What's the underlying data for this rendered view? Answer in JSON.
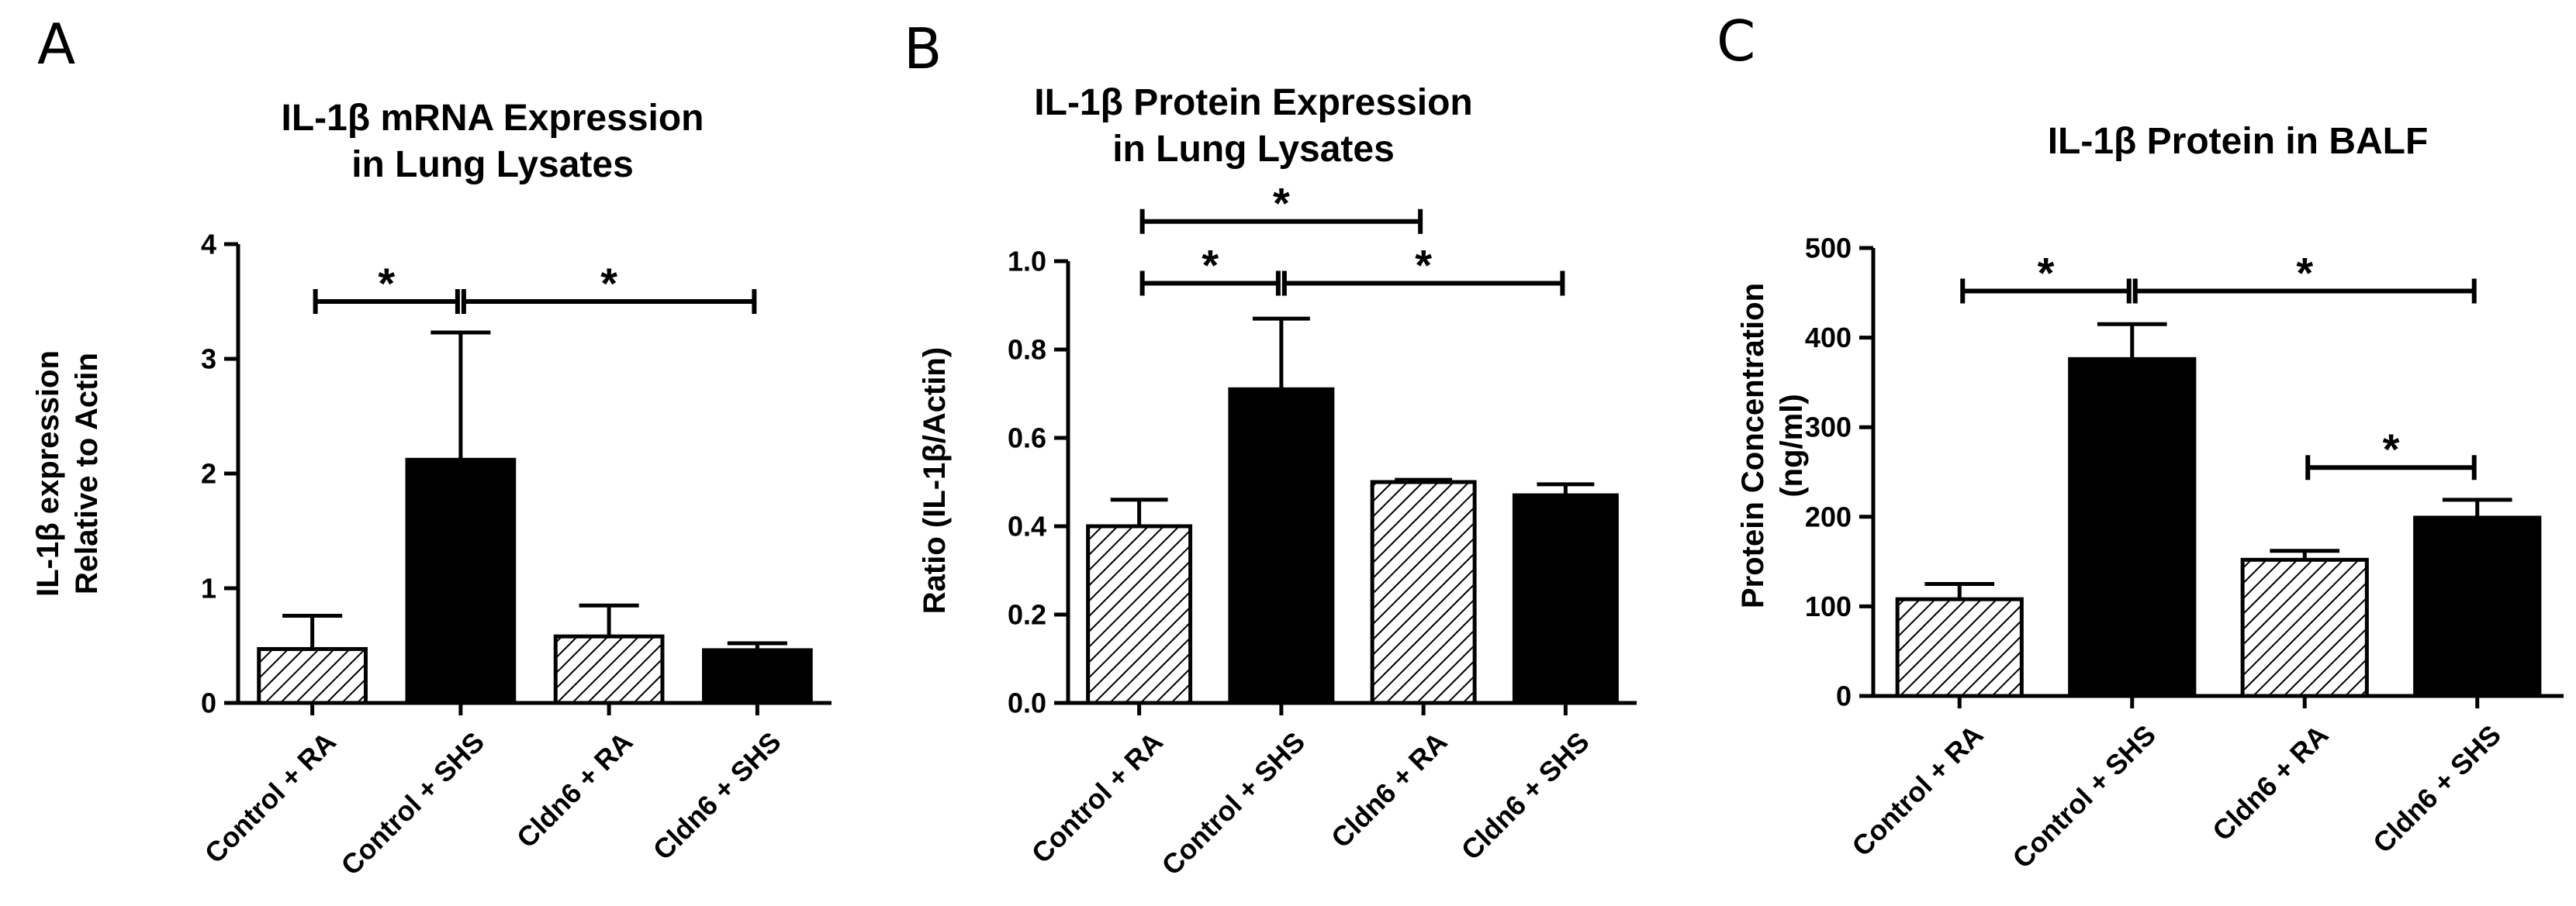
{
  "colors": {
    "black": "#000000",
    "hatch_fill": "#ffffff",
    "hatch_line": "#000000"
  },
  "chart_data": [
    {
      "panel": "A",
      "type": "bar",
      "title": [
        "IL-1β mRNA Expression",
        "in Lung Lysates"
      ],
      "ylabel": [
        "IL-1β expression",
        "Relative to Actin"
      ],
      "categories": [
        "Control + RA",
        "Control + SHS",
        "Cldn6 + RA",
        "Cldn6 + SHS"
      ],
      "values": [
        0.47,
        2.12,
        0.58,
        0.46
      ],
      "errors": [
        0.29,
        1.11,
        0.27,
        0.06
      ],
      "fills": [
        "hatch",
        "solid",
        "hatch",
        "solid"
      ],
      "ylim": [
        0,
        4
      ],
      "yticks": [
        "0",
        "1",
        "2",
        "3",
        "4"
      ],
      "significance": [
        {
          "from": 0,
          "to": 1,
          "y": 3.5,
          "label": "*"
        },
        {
          "from": 1,
          "to": 3,
          "y": 3.5,
          "label": "*"
        }
      ]
    },
    {
      "panel": "B",
      "type": "bar",
      "title": [
        "IL-1β Protein Expression",
        "in Lung Lysates"
      ],
      "ylabel": [
        "Ratio (IL-1β/Actin)"
      ],
      "categories": [
        "Control + RA",
        "Control + SHS",
        "Cldn6 + RA",
        "Cldn6 + SHS"
      ],
      "values": [
        0.4,
        0.71,
        0.5,
        0.47
      ],
      "errors": [
        0.06,
        0.16,
        0.005,
        0.025
      ],
      "fills": [
        "hatch",
        "solid",
        "hatch",
        "solid"
      ],
      "ylim": [
        0,
        1.0
      ],
      "yticks": [
        "0.0",
        "0.2",
        "0.4",
        "0.6",
        "0.8",
        "1.0"
      ],
      "significance": [
        {
          "from": 0,
          "to": 2,
          "y": 1.09,
          "label": "*"
        },
        {
          "from": 0,
          "to": 1,
          "y": 0.95,
          "label": "*"
        },
        {
          "from": 1,
          "to": 3,
          "y": 0.95,
          "label": "*"
        }
      ]
    },
    {
      "panel": "C",
      "type": "bar",
      "title": [
        "IL-1β Protein in BALF"
      ],
      "ylabel": [
        "Protein Concentration",
        "(ng/ml)"
      ],
      "categories": [
        "Control + RA",
        "Control + SHS",
        "Cldn6 + RA",
        "Cldn6 + SHS"
      ],
      "values": [
        108,
        376,
        152,
        199
      ],
      "errors": [
        17,
        39,
        10,
        20
      ],
      "fills": [
        "hatch",
        "solid",
        "hatch",
        "solid"
      ],
      "ylim": [
        0,
        500
      ],
      "yticks": [
        "0",
        "100",
        "200",
        "300",
        "400",
        "500"
      ],
      "significance": [
        {
          "from": 0,
          "to": 1,
          "y": 452,
          "label": "*"
        },
        {
          "from": 1,
          "to": 3,
          "y": 452,
          "label": "*"
        },
        {
          "from": 2,
          "to": 3,
          "y": 255,
          "label": "*"
        }
      ]
    }
  ]
}
